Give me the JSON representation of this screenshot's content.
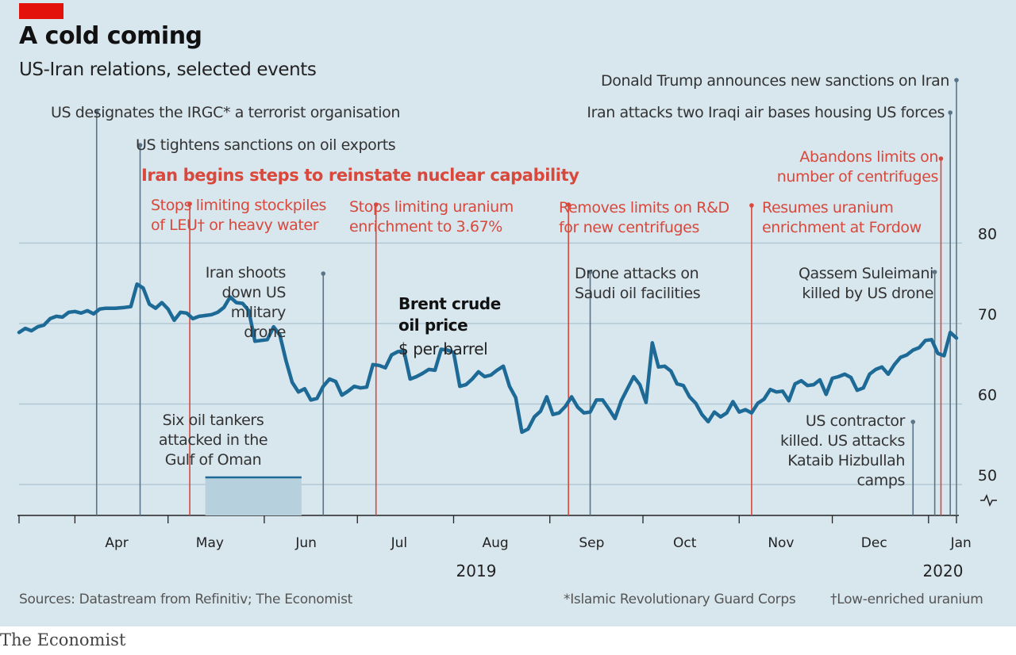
{
  "title": "A cold coming",
  "subtitle": "US-Iran relations, selected events",
  "source": "Sources: Datastream from Refinitiv; The Economist",
  "footnote_irgc": "*Islamic Revolutionary Guard Corps",
  "footnote_leu": "†Low-enriched uranium",
  "brand": "The Economist",
  "colors": {
    "background": "#d8e6ee",
    "line": "#1d6a96",
    "grey_marker": "#5b7588",
    "red_marker": "#d9483b",
    "grid": "#aac4d1",
    "tag": "#e3120b",
    "band": "#b6d1dd"
  },
  "series_label": {
    "name": "Brent crude oil price",
    "line1": "Brent crude",
    "line2": "oil price",
    "unit": "$ per barrel"
  },
  "chart_data": {
    "type": "line",
    "title": "A cold coming",
    "subtitle": "US-Iran relations, selected events",
    "ylabel": "$ per barrel",
    "ylim": [
      46.5,
      87
    ],
    "yticks": [
      50,
      60,
      70,
      80
    ],
    "y_axis_break": true,
    "x_range": [
      "2019-03-14",
      "2020-01-10"
    ],
    "x_month_labels": [
      "Apr",
      "May",
      "Jun",
      "Jul",
      "Aug",
      "Sep",
      "Oct",
      "Nov",
      "Dec",
      "Jan"
    ],
    "x_year_labels": [
      "2019",
      "2020"
    ],
    "series": [
      {
        "name": "Brent crude oil price",
        "points": [
          [
            "2019-03-14",
            68.9
          ],
          [
            "2019-03-16",
            69.4
          ],
          [
            "2019-03-18",
            69.1
          ],
          [
            "2019-03-20",
            69.6
          ],
          [
            "2019-03-22",
            69.8
          ],
          [
            "2019-03-24",
            70.6
          ],
          [
            "2019-03-26",
            70.9
          ],
          [
            "2019-03-28",
            70.8
          ],
          [
            "2019-03-30",
            71.4
          ],
          [
            "2019-04-01",
            71.5
          ],
          [
            "2019-04-03",
            71.3
          ],
          [
            "2019-04-05",
            71.6
          ],
          [
            "2019-04-07",
            71.2
          ],
          [
            "2019-04-09",
            71.8
          ],
          [
            "2019-04-11",
            71.9
          ],
          [
            "2019-04-14",
            71.9
          ],
          [
            "2019-04-17",
            72.0
          ],
          [
            "2019-04-19",
            72.1
          ],
          [
            "2019-04-21",
            74.9
          ],
          [
            "2019-04-23",
            74.4
          ],
          [
            "2019-04-25",
            72.4
          ],
          [
            "2019-04-27",
            71.9
          ],
          [
            "2019-04-29",
            72.6
          ],
          [
            "2019-05-01",
            71.8
          ],
          [
            "2019-05-03",
            70.4
          ],
          [
            "2019-05-05",
            71.4
          ],
          [
            "2019-05-07",
            71.3
          ],
          [
            "2019-05-09",
            70.6
          ],
          [
            "2019-05-11",
            70.9
          ],
          [
            "2019-05-13",
            71.0
          ],
          [
            "2019-05-15",
            71.1
          ],
          [
            "2019-05-17",
            71.4
          ],
          [
            "2019-05-19",
            72.0
          ],
          [
            "2019-05-21",
            73.3
          ],
          [
            "2019-05-23",
            72.6
          ],
          [
            "2019-05-25",
            72.5
          ],
          [
            "2019-05-27",
            71.6
          ],
          [
            "2019-05-29",
            67.8
          ],
          [
            "2019-05-31",
            67.9
          ],
          [
            "2019-06-02",
            68.0
          ],
          [
            "2019-06-04",
            69.6
          ],
          [
            "2019-06-06",
            68.6
          ],
          [
            "2019-06-08",
            65.4
          ],
          [
            "2019-06-10",
            62.7
          ],
          [
            "2019-06-12",
            61.5
          ],
          [
            "2019-06-14",
            61.9
          ],
          [
            "2019-06-16",
            60.5
          ],
          [
            "2019-06-18",
            60.7
          ],
          [
            "2019-06-20",
            62.2
          ],
          [
            "2019-06-22",
            63.1
          ],
          [
            "2019-06-24",
            62.8
          ],
          [
            "2019-06-26",
            61.1
          ],
          [
            "2019-06-28",
            61.6
          ],
          [
            "2019-06-30",
            62.2
          ],
          [
            "2019-07-02",
            62.0
          ],
          [
            "2019-07-04",
            62.1
          ],
          [
            "2019-07-06",
            64.9
          ],
          [
            "2019-07-08",
            64.8
          ],
          [
            "2019-07-10",
            64.5
          ],
          [
            "2019-07-12",
            66.1
          ],
          [
            "2019-07-14",
            66.5
          ],
          [
            "2019-07-16",
            66.6
          ],
          [
            "2019-07-18",
            63.1
          ],
          [
            "2019-07-20",
            63.4
          ],
          [
            "2019-07-22",
            63.8
          ],
          [
            "2019-07-24",
            64.3
          ],
          [
            "2019-07-26",
            64.2
          ],
          [
            "2019-07-28",
            66.8
          ],
          [
            "2019-07-30",
            66.7
          ],
          [
            "2019-08-01",
            66.4
          ],
          [
            "2019-08-03",
            62.2
          ],
          [
            "2019-08-05",
            62.4
          ],
          [
            "2019-08-07",
            63.1
          ],
          [
            "2019-08-09",
            64.0
          ],
          [
            "2019-08-11",
            63.4
          ],
          [
            "2019-08-13",
            63.6
          ],
          [
            "2019-08-15",
            64.2
          ],
          [
            "2019-08-17",
            64.7
          ],
          [
            "2019-08-19",
            62.2
          ],
          [
            "2019-08-21",
            60.8
          ],
          [
            "2019-08-23",
            56.5
          ],
          [
            "2019-08-25",
            56.9
          ],
          [
            "2019-08-27",
            58.4
          ],
          [
            "2019-08-29",
            59.1
          ],
          [
            "2019-08-31",
            60.9
          ],
          [
            "2019-09-02",
            58.7
          ],
          [
            "2019-09-04",
            58.9
          ],
          [
            "2019-09-06",
            59.7
          ],
          [
            "2019-09-08",
            60.9
          ],
          [
            "2019-09-10",
            59.6
          ],
          [
            "2019-09-12",
            58.9
          ],
          [
            "2019-09-14",
            59.0
          ],
          [
            "2019-09-16",
            60.5
          ],
          [
            "2019-09-18",
            60.5
          ],
          [
            "2019-09-20",
            59.4
          ],
          [
            "2019-09-22",
            58.2
          ],
          [
            "2019-09-24",
            60.4
          ],
          [
            "2019-09-26",
            61.9
          ],
          [
            "2019-09-28",
            63.4
          ],
          [
            "2019-09-30",
            62.4
          ],
          [
            "2019-10-02",
            60.2
          ],
          [
            "2019-10-04",
            67.6
          ],
          [
            "2019-10-06",
            64.6
          ],
          [
            "2019-10-08",
            64.7
          ],
          [
            "2019-10-10",
            64.1
          ],
          [
            "2019-10-12",
            62.5
          ],
          [
            "2019-10-14",
            62.3
          ],
          [
            "2019-10-16",
            60.9
          ],
          [
            "2019-10-18",
            60.1
          ],
          [
            "2019-10-20",
            58.7
          ],
          [
            "2019-10-22",
            57.8
          ],
          [
            "2019-10-24",
            59.0
          ],
          [
            "2019-10-26",
            58.4
          ],
          [
            "2019-10-28",
            58.9
          ],
          [
            "2019-10-30",
            60.3
          ],
          [
            "2019-11-01",
            59.0
          ],
          [
            "2019-11-03",
            59.3
          ],
          [
            "2019-11-05",
            58.9
          ],
          [
            "2019-11-07",
            60.1
          ],
          [
            "2019-11-09",
            60.6
          ],
          [
            "2019-11-11",
            61.8
          ],
          [
            "2019-11-13",
            61.5
          ],
          [
            "2019-11-15",
            61.6
          ],
          [
            "2019-11-17",
            60.4
          ],
          [
            "2019-11-19",
            62.5
          ],
          [
            "2019-11-21",
            62.9
          ],
          [
            "2019-11-23",
            62.3
          ],
          [
            "2019-11-25",
            62.4
          ],
          [
            "2019-11-27",
            63.0
          ],
          [
            "2019-11-29",
            61.2
          ],
          [
            "2019-12-01",
            63.2
          ],
          [
            "2019-12-03",
            63.4
          ],
          [
            "2019-12-05",
            63.7
          ],
          [
            "2019-12-07",
            63.3
          ],
          [
            "2019-12-09",
            61.7
          ],
          [
            "2019-12-11",
            62.0
          ],
          [
            "2019-12-13",
            63.7
          ],
          [
            "2019-12-15",
            64.3
          ],
          [
            "2019-12-17",
            64.6
          ],
          [
            "2019-12-19",
            63.7
          ],
          [
            "2019-12-21",
            64.9
          ],
          [
            "2019-12-23",
            65.8
          ],
          [
            "2019-12-25",
            66.1
          ],
          [
            "2019-12-27",
            66.7
          ],
          [
            "2019-12-29",
            67.0
          ],
          [
            "2019-12-31",
            67.9
          ],
          [
            "2020-01-02",
            68.0
          ],
          [
            "2020-01-04",
            66.3
          ],
          [
            "2020-01-06",
            66.0
          ],
          [
            "2020-01-08",
            68.9
          ],
          [
            "2020-01-10",
            68.2
          ]
        ]
      }
    ],
    "events": [
      {
        "date": "2019-04-08",
        "kind": "us",
        "text": "US designates the IRGC* a terrorist organisation"
      },
      {
        "date": "2019-04-22",
        "kind": "us",
        "text": "US tightens sanctions on oil exports"
      },
      {
        "date": "2019-05-08",
        "kind": "iran",
        "text": "Stops limiting stockpiles\nof LEU† or heavy water"
      },
      {
        "date": "2019-05-13",
        "date_end": "2019-06-13",
        "kind": "band",
        "text": "Six oil tankers\nattacked in the\nGulf of Oman"
      },
      {
        "date": "2019-06-20",
        "kind": "us",
        "text": "Iran shoots\ndown US\nmilitary\ndrone"
      },
      {
        "date": "2019-07-07",
        "kind": "iran",
        "text": "Stops limiting uranium\nenrichment to 3.67%"
      },
      {
        "date": "2019-09-07",
        "kind": "iran",
        "text": "Removes limits on R&D\nfor new centrifuges"
      },
      {
        "date": "2019-09-14",
        "kind": "us",
        "text": "Drone attacks on\nSaudi oil facilities"
      },
      {
        "date": "2019-11-05",
        "kind": "iran",
        "text": "Resumes uranium\nenrichment at Fordow"
      },
      {
        "date": "2019-12-27",
        "kind": "us",
        "text": "US contractor\nkilled. US attacks\nKataib Hizbullah\ncamps"
      },
      {
        "date": "2020-01-03",
        "kind": "us",
        "text": "Qassem Suleimani\nkilled by US drone"
      },
      {
        "date": "2020-01-05",
        "kind": "iran",
        "text": "Abandons limits on\nnumber of centrifuges"
      },
      {
        "date": "2020-01-08",
        "kind": "us",
        "text": "Iran attacks two Iraqi air bases housing US forces"
      },
      {
        "date": "2020-01-10",
        "kind": "us",
        "text": "Donald Trump announces new sanctions on Iran"
      }
    ],
    "iran_steps_heading": "Iran begins steps to reinstate nuclear capability"
  }
}
